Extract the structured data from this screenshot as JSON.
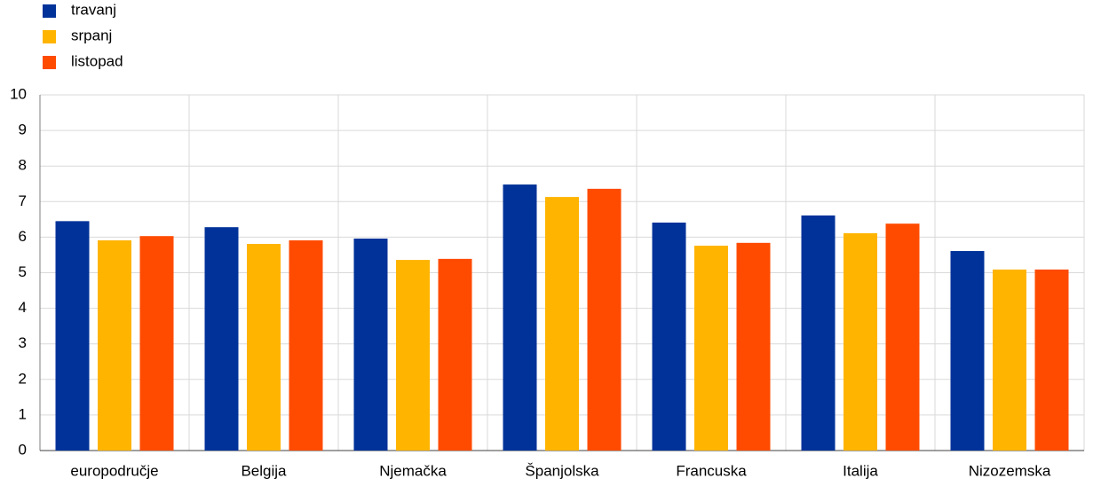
{
  "chart_data": {
    "type": "bar",
    "categories": [
      "europodručje",
      "Belgija",
      "Njemačka",
      "Španjolska",
      "Francuska",
      "Italija",
      "Nizozemska"
    ],
    "series": [
      {
        "name": "travanj",
        "color": "#003299",
        "values": [
          6.45,
          6.28,
          5.96,
          7.48,
          6.41,
          6.61,
          5.61
        ]
      },
      {
        "name": "srpanj",
        "color": "#ffb400",
        "values": [
          5.91,
          5.81,
          5.36,
          7.13,
          5.76,
          6.11,
          5.09
        ]
      },
      {
        "name": "listopad",
        "color": "#ff4b00",
        "values": [
          6.03,
          5.91,
          5.39,
          7.36,
          5.84,
          6.38,
          5.09
        ]
      }
    ],
    "ylim": [
      0,
      10
    ],
    "yticks": [
      0,
      1,
      2,
      3,
      4,
      5,
      6,
      7,
      8,
      9,
      10
    ],
    "grid": true
  }
}
